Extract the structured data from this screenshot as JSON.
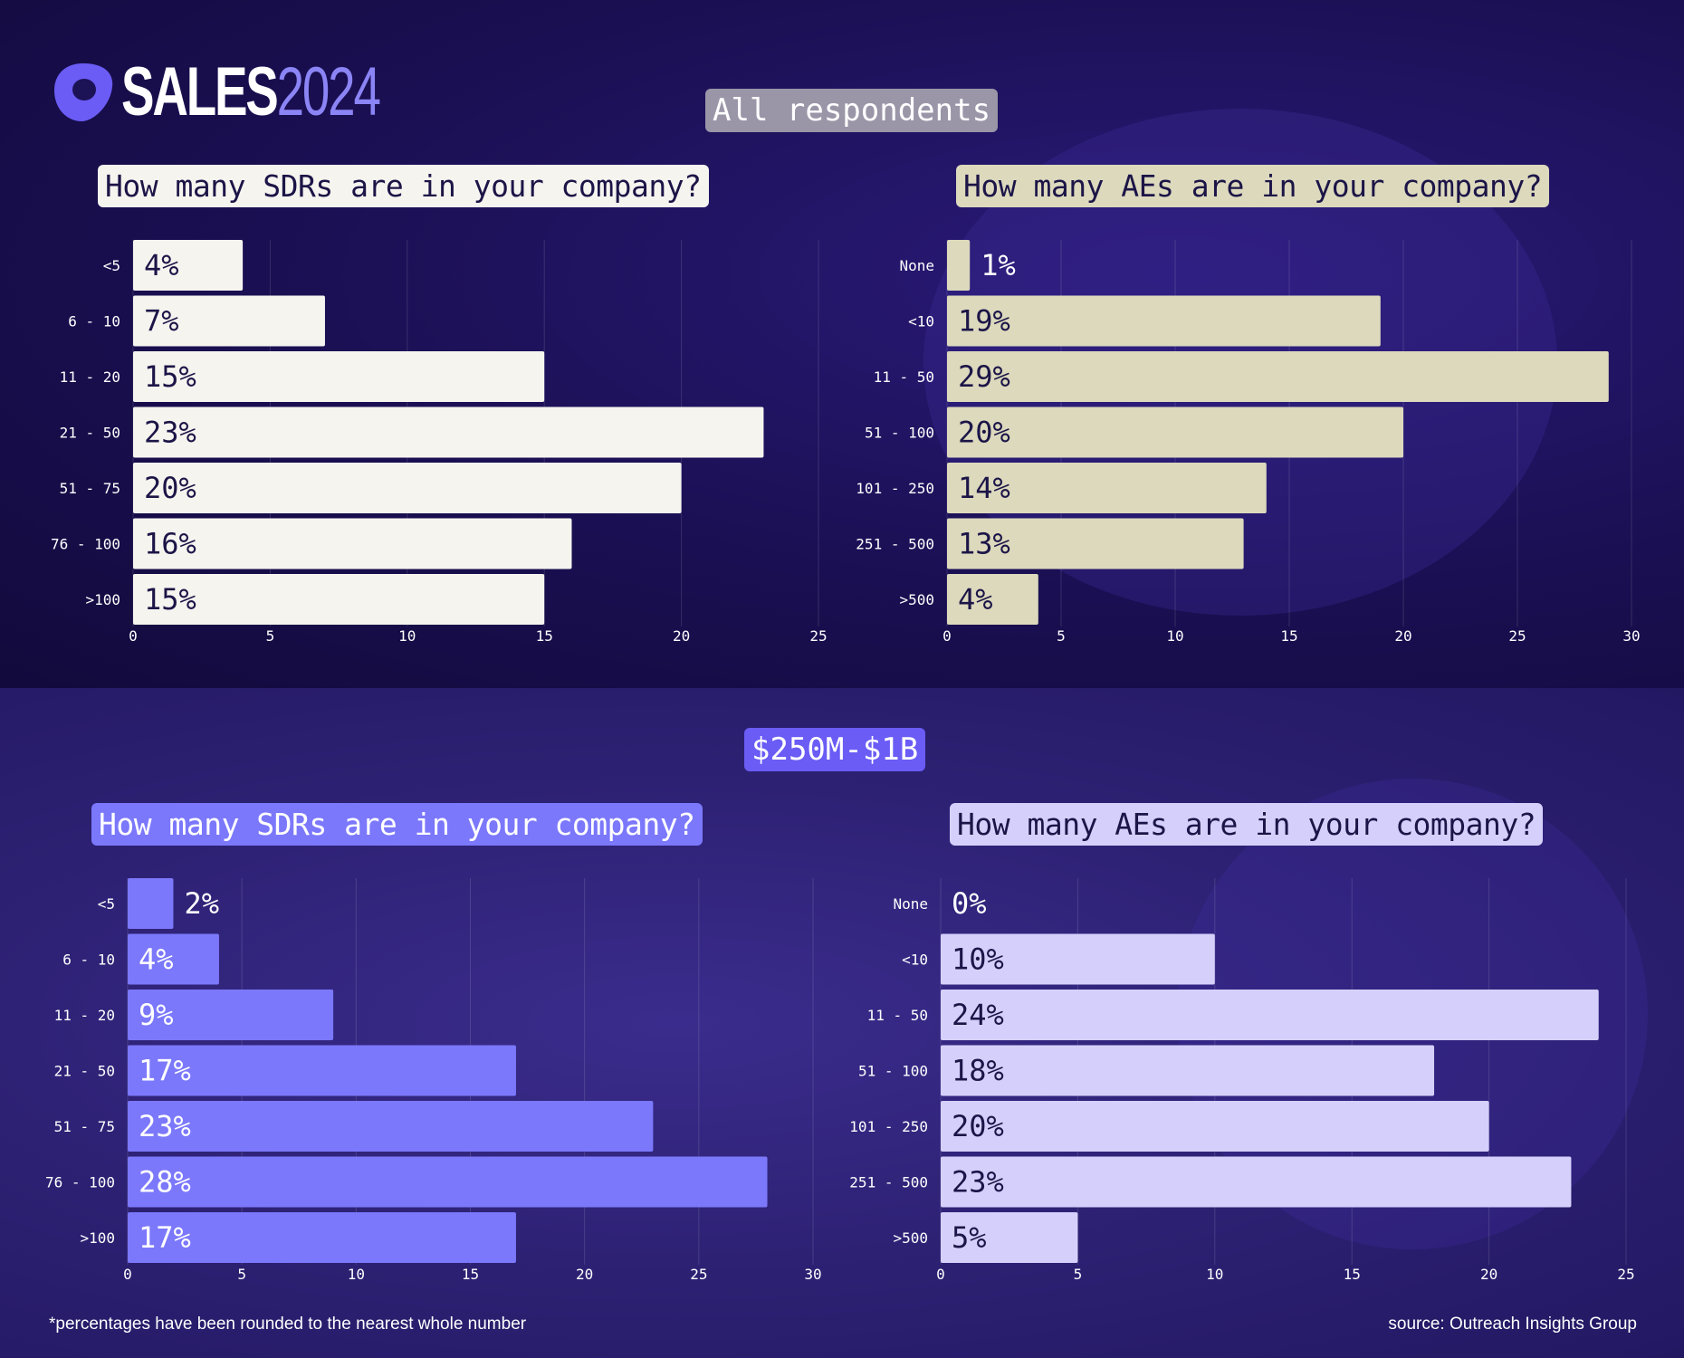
{
  "brand": {
    "name_part1": "SALES",
    "name_part2": "2024"
  },
  "groups": {
    "top": "All respondents",
    "bottom": "$250M-$1B"
  },
  "colors": {
    "sdr_all": "#f6f4ef",
    "ae_all": "#dcd9bd",
    "sdr_seg": "#7b78fb",
    "ae_seg": "#d4d0fb",
    "dark_text": "#1c1547",
    "light_text": "#ffffff"
  },
  "chart_data": [
    {
      "type": "bar",
      "orientation": "horizontal",
      "group": "All respondents",
      "title": "How many SDRs are in your company?",
      "categories": [
        "<5",
        "6 - 10",
        "11 - 20",
        "21 - 50",
        "51 - 75",
        "76 - 100",
        ">100"
      ],
      "values": [
        4,
        7,
        15,
        23,
        20,
        16,
        15
      ],
      "labels": [
        "4%",
        "7%",
        "15%",
        "23%",
        "20%",
        "16%",
        "15%"
      ],
      "xlim": [
        0,
        25
      ],
      "xticks": [
        0,
        5,
        10,
        15,
        20,
        25
      ],
      "grid": true
    },
    {
      "type": "bar",
      "orientation": "horizontal",
      "group": "All respondents",
      "title": "How many AEs are in your company?",
      "categories": [
        "None",
        "<10",
        "11 - 50",
        "51 - 100",
        "101 - 250",
        "251 - 500",
        ">500"
      ],
      "values": [
        1,
        19,
        29,
        20,
        14,
        13,
        4
      ],
      "labels": [
        "1%",
        "19%",
        "29%",
        "20%",
        "14%",
        "13%",
        "4%"
      ],
      "xlim": [
        0,
        30
      ],
      "xticks": [
        0,
        5,
        10,
        15,
        20,
        25,
        30
      ],
      "grid": true
    },
    {
      "type": "bar",
      "orientation": "horizontal",
      "group": "$250M-$1B",
      "title": "How many SDRs are in your company?",
      "categories": [
        "<5",
        "6 - 10",
        "11 - 20",
        "21 - 50",
        "51 - 75",
        "76 - 100",
        ">100"
      ],
      "values": [
        2,
        4,
        9,
        17,
        23,
        28,
        17
      ],
      "labels": [
        "2%",
        "4%",
        "9%",
        "17%",
        "23%",
        "28%",
        "17%"
      ],
      "xlim": [
        0,
        30
      ],
      "xticks": [
        0,
        5,
        10,
        15,
        20,
        25,
        30
      ],
      "grid": true
    },
    {
      "type": "bar",
      "orientation": "horizontal",
      "group": "$250M-$1B",
      "title": "How many AEs are in your company?",
      "categories": [
        "None",
        "<10",
        "11 - 50",
        "51 - 100",
        "101 - 250",
        "251 - 500",
        ">500"
      ],
      "values": [
        0,
        10,
        24,
        18,
        20,
        23,
        5
      ],
      "labels": [
        "0%",
        "10%",
        "24%",
        "18%",
        "20%",
        "23%",
        "5%"
      ],
      "xlim": [
        0,
        25
      ],
      "xticks": [
        0,
        5,
        10,
        15,
        20,
        25
      ],
      "grid": true
    }
  ],
  "footnote": "*percentages have been rounded to the nearest whole number",
  "source": "source: Outreach Insights Group"
}
